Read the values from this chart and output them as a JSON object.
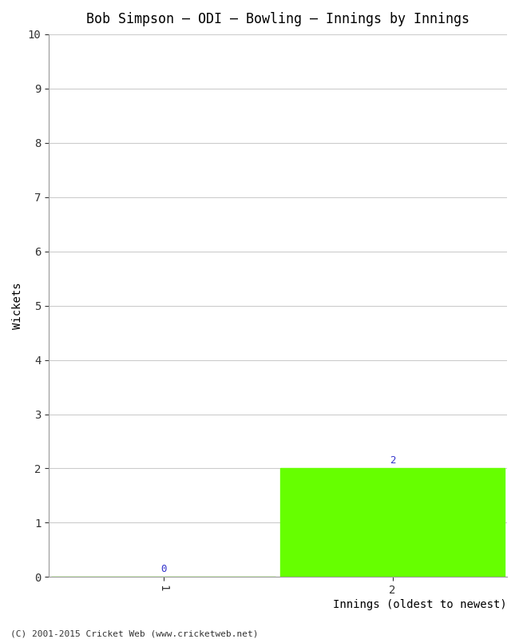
{
  "title": "Bob Simpson – ODI – Bowling – Innings by Innings",
  "categories": [
    1,
    2
  ],
  "values": [
    0,
    2
  ],
  "bar_color": "#66ff00",
  "xlabel": "Innings (oldest to newest)",
  "ylabel": "Wickets",
  "ylim": [
    0,
    10
  ],
  "yticks": [
    0,
    1,
    2,
    3,
    4,
    5,
    6,
    7,
    8,
    9,
    10
  ],
  "xticks": [
    1,
    2
  ],
  "background_color": "#ffffff",
  "footer": "(C) 2001-2015 Cricket Web (www.cricketweb.net)",
  "bar_width": 0.98,
  "label_color": "#3333cc",
  "grid_color": "#cccccc",
  "xlim": [
    0.5,
    2.5
  ]
}
